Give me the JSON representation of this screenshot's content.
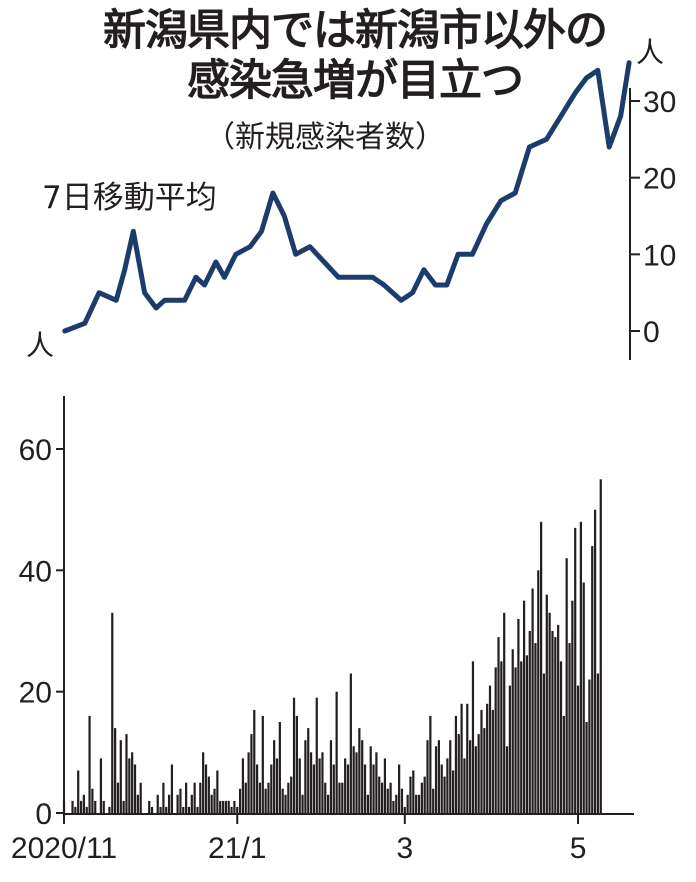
{
  "header": {
    "title_line1": "新潟県内では新潟市以外の",
    "title_line2": "感染急増が目立つ",
    "subtitle": "（新規感染者数）",
    "moving_average_label": "7日移動平均"
  },
  "chart_data": [
    {
      "type": "line",
      "title": "7日移動平均",
      "unit_label": "人",
      "ylim": [
        -2,
        36
      ],
      "yticks": [
        0,
        10,
        20,
        30
      ],
      "color": "#1c3d6b",
      "x_range": [
        "2020-11-01",
        "2021-05-20"
      ],
      "x": [
        "2020-11-02",
        "2020-11-09",
        "2020-11-14",
        "2020-11-20",
        "2020-11-23",
        "2020-11-26",
        "2020-11-30",
        "2020-12-04",
        "2020-12-07",
        "2020-12-14",
        "2020-12-18",
        "2020-12-21",
        "2020-12-25",
        "2020-12-28",
        "2021-01-01",
        "2021-01-06",
        "2021-01-10",
        "2021-01-14",
        "2021-01-18",
        "2021-01-22",
        "2021-01-27",
        "2021-02-01",
        "2021-02-06",
        "2021-02-10",
        "2021-02-14",
        "2021-02-18",
        "2021-02-22",
        "2021-02-28",
        "2021-03-04",
        "2021-03-08",
        "2021-03-12",
        "2021-03-16",
        "2021-03-20",
        "2021-03-25",
        "2021-03-30",
        "2021-04-04",
        "2021-04-09",
        "2021-04-14",
        "2021-04-20",
        "2021-04-25",
        "2021-04-30",
        "2021-05-04",
        "2021-05-08",
        "2021-05-12",
        "2021-05-16",
        "2021-05-19"
      ],
      "values": [
        0,
        1,
        5,
        4,
        8,
        13,
        5,
        3,
        4,
        4,
        7,
        6,
        9,
        7,
        10,
        11,
        13,
        18,
        15,
        10,
        11,
        9,
        7,
        7,
        7,
        7,
        6,
        4,
        5,
        8,
        6,
        6,
        10,
        10,
        14,
        17,
        18,
        24,
        25,
        28,
        31,
        33,
        34,
        24,
        28,
        35
      ]
    },
    {
      "type": "bar",
      "ylim": [
        0,
        68
      ],
      "yticks": [
        0,
        20,
        40,
        60
      ],
      "color": "#231f20",
      "x_range": [
        "2020-11-01",
        "2021-05-20"
      ],
      "xticks": [
        {
          "label": "2020/11",
          "date": "2020-11-01"
        },
        {
          "label": "21/1",
          "date": "2021-01-01"
        },
        {
          "label": "3",
          "date": "2021-03-01"
        },
        {
          "label": "5",
          "date": "2021-05-01"
        }
      ],
      "start_date": "2020-11-01",
      "values": [
        2,
        0,
        0,
        2,
        1,
        7,
        2,
        3,
        1,
        16,
        4,
        2,
        0,
        9,
        2,
        0,
        1,
        33,
        14,
        5,
        12,
        2,
        13,
        9,
        10,
        8,
        3,
        5,
        0,
        0,
        2,
        1,
        0,
        3,
        1,
        5,
        1,
        3,
        8,
        0,
        3,
        4,
        1,
        5,
        1,
        3,
        5,
        1,
        5,
        10,
        8,
        6,
        3,
        4,
        7,
        2,
        2,
        2,
        2,
        1,
        2,
        1,
        4,
        9,
        5,
        10,
        13,
        17,
        8,
        5,
        16,
        4,
        5,
        8,
        12,
        9,
        15,
        4,
        3,
        5,
        6,
        19,
        16,
        9,
        3,
        12,
        14,
        10,
        8,
        19,
        9,
        10,
        5,
        3,
        12,
        8,
        20,
        5,
        5,
        9,
        8,
        23,
        11,
        10,
        14,
        12,
        8,
        3,
        11,
        8,
        10,
        6,
        5,
        9,
        4,
        5,
        2,
        3,
        8,
        4,
        1,
        3,
        6,
        7,
        3,
        3,
        5,
        6,
        12,
        16,
        4,
        11,
        12,
        8,
        6,
        9,
        12,
        7,
        16,
        13,
        18,
        9,
        18,
        12,
        25,
        11,
        13,
        17,
        14,
        18,
        21,
        17,
        24,
        29,
        25,
        33,
        11,
        21,
        27,
        24,
        32,
        25,
        35,
        26,
        30,
        37,
        28,
        40,
        48,
        23,
        36,
        33,
        30,
        29,
        31,
        25,
        16,
        42,
        28,
        35,
        47,
        21,
        48,
        38,
        15,
        22,
        44,
        50,
        23,
        55
      ]
    }
  ]
}
